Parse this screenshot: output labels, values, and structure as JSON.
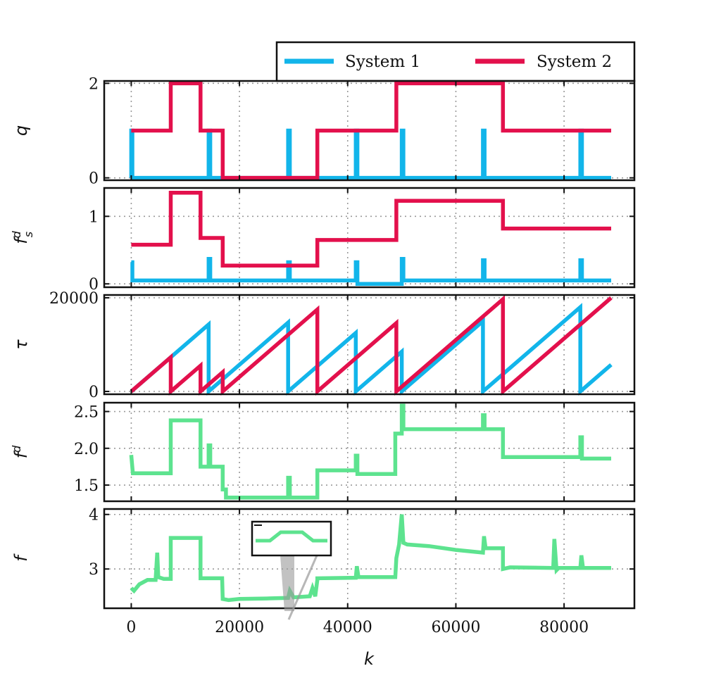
{
  "chart_data": {
    "type": "line",
    "xlabel": "k",
    "x_ticks": [
      0,
      20000,
      40000,
      60000,
      80000
    ],
    "xlim": [
      -5000,
      93000
    ],
    "grid": true,
    "legend": {
      "placement": "top-right",
      "entries": [
        {
          "label": "System 1",
          "color": "#12b5ea"
        },
        {
          "label": "System 2",
          "color": "#e3104c"
        }
      ]
    },
    "colors": {
      "system1": "#12b5ea",
      "system2": "#e3104c",
      "aggregate": "#5de38f",
      "frame": "#111111",
      "grid": "#9a9a9a"
    },
    "panels": [
      {
        "ylabel": "q",
        "ylim": [
          -0.05,
          2.05
        ],
        "y_ticks": [
          0,
          2
        ],
        "series": [
          {
            "name": "System 1",
            "color": "#12b5ea",
            "x": [
              0,
              0,
              200,
              200,
              14300,
              14300,
              14600,
              14600,
              29000,
              29000,
              29300,
              29300,
              41500,
              41500,
              41800,
              41800,
              50000,
              50000,
              50300,
              50300,
              65000,
              65000,
              65300,
              65300,
              83000,
              83000,
              83300,
              83300,
              88700
            ],
            "y": [
              0,
              1,
              1,
              0,
              0,
              1,
              1,
              0,
              0,
              1,
              1,
              0,
              0,
              1,
              1,
              0,
              0,
              1,
              1,
              0,
              0,
              1,
              1,
              0,
              0,
              1,
              1,
              0,
              0
            ]
          },
          {
            "name": "System 2",
            "color": "#e3104c",
            "x": [
              0,
              7300,
              7300,
              12800,
              12800,
              16900,
              16900,
              34400,
              34400,
              49000,
              49000,
              68700,
              68700,
              88700
            ],
            "y": [
              1,
              1,
              2,
              2,
              1,
              1,
              0,
              0,
              1,
              1,
              2,
              2,
              1,
              1
            ]
          }
        ]
      },
      {
        "ylabel": "f_s^d",
        "ylabel_main": "f",
        "ylabel_sub": "s",
        "ylabel_sup": "d",
        "ylim": [
          -0.05,
          1.42
        ],
        "y_ticks": [
          0,
          1
        ],
        "series": [
          {
            "name": "System 1",
            "color": "#12b5ea",
            "x": [
              0,
              0,
              200,
              200,
              14300,
              14300,
              14600,
              14600,
              29000,
              29000,
              29300,
              29300,
              41500,
              41500,
              41800,
              41800,
              50000,
              50000,
              50300,
              50300,
              65000,
              65000,
              65300,
              65300,
              83000,
              83000,
              83300,
              83300,
              88700
            ],
            "y": [
              0.32,
              0.32,
              0.32,
              0.05,
              0.05,
              0.37,
              0.37,
              0.05,
              0.05,
              0.32,
              0.32,
              0.05,
              0.05,
              0.32,
              0.32,
              0,
              0,
              0.37,
              0.37,
              0.05,
              0.05,
              0.35,
              0.35,
              0.05,
              0.05,
              0.35,
              0.35,
              0.05,
              0.05
            ]
          },
          {
            "name": "System 2",
            "color": "#e3104c",
            "x": [
              0,
              7300,
              7300,
              12800,
              12800,
              16900,
              16900,
              34400,
              34400,
              49000,
              49000,
              68700,
              68700,
              88700
            ],
            "y": [
              0.58,
              0.58,
              1.35,
              1.35,
              0.68,
              0.68,
              0.27,
              0.27,
              0.65,
              0.65,
              1.23,
              1.23,
              0.82,
              0.82
            ]
          }
        ]
      },
      {
        "ylabel": "τ",
        "ylim": [
          -600,
          20600
        ],
        "y_ticks": [
          0,
          20000
        ],
        "series": [
          {
            "name": "System 1",
            "color": "#12b5ea",
            "x": [
              0,
              7300,
              14300,
              14300,
              29000,
              29000,
              41500,
              41500,
              50000,
              50000,
              65000,
              65000,
              83000,
              83000,
              88700
            ],
            "y": [
              0,
              7300,
              14300,
              0,
              14700,
              0,
              12500,
              0,
              8500,
              0,
              15000,
              0,
              18000,
              0,
              5700
            ]
          },
          {
            "name": "System 2",
            "color": "#e3104c",
            "x": [
              0,
              7300,
              7300,
              12800,
              12800,
              16900,
              16900,
              34400,
              34400,
              49000,
              49000,
              68700,
              68700,
              88700
            ],
            "y": [
              0,
              7300,
              0,
              5500,
              0,
              4100,
              0,
              17500,
              0,
              14600,
              0,
              19700,
              0,
              20000
            ]
          }
        ]
      },
      {
        "ylabel": "f^d",
        "ylabel_main": "f",
        "ylabel_sup": "d",
        "ylim": [
          1.28,
          2.62
        ],
        "y_ticks": [
          1.5,
          2.0,
          2.5
        ],
        "tick_labels": [
          "1.5",
          "2.0",
          "2.5"
        ],
        "series": [
          {
            "name": "f^d",
            "color": "#5de38f",
            "x": [
              0,
              0,
              300,
              7300,
              7300,
              12800,
              12800,
              14300,
              14300,
              14600,
              14600,
              16900,
              16900,
              17500,
              17500,
              29000,
              29000,
              29300,
              29300,
              34400,
              34400,
              41500,
              41500,
              41800,
              41800,
              48800,
              48800,
              50000,
              50000,
              50300,
              50300,
              65000,
              65000,
              65300,
              65300,
              68700,
              68700,
              83000,
              83000,
              83300,
              83300,
              88700
            ],
            "y": [
              1.91,
              1.91,
              1.66,
              1.66,
              2.38,
              2.38,
              1.75,
              1.75,
              2.04,
              2.04,
              1.75,
              1.75,
              1.44,
              1.44,
              1.33,
              1.33,
              1.6,
              1.6,
              1.33,
              1.33,
              1.7,
              1.7,
              1.9,
              1.9,
              1.65,
              1.65,
              2.2,
              2.2,
              2.58,
              2.58,
              2.26,
              2.26,
              2.45,
              2.45,
              2.26,
              2.26,
              1.88,
              1.88,
              2.15,
              2.15,
              1.86,
              1.86
            ]
          }
        ]
      },
      {
        "ylabel": "f",
        "ylim": [
          2.28,
          4.1
        ],
        "y_ticks": [
          3,
          4
        ],
        "series": [
          {
            "name": "f",
            "color": "#5de38f",
            "x": [
              0,
              500,
              1500,
              3000,
              4500,
              4800,
              5000,
              6000,
              7300,
              7300,
              12800,
              12800,
              16800,
              16900,
              18000,
              20000,
              25000,
              29000,
              29300,
              30000,
              33000,
              33500,
              34000,
              34400,
              34400,
              41500,
              41700,
              42000,
              48800,
              49000,
              49500,
              50000,
              50300,
              51000,
              55000,
              60000,
              65000,
              65200,
              65500,
              68700,
              68700,
              70000,
              78000,
              78200,
              78600,
              79000,
              83000,
              83200,
              83500,
              88700
            ],
            "y": [
              2.65,
              2.6,
              2.72,
              2.8,
              2.8,
              3.3,
              2.85,
              2.82,
              2.82,
              3.57,
              3.57,
              2.83,
              2.83,
              2.45,
              2.43,
              2.45,
              2.46,
              2.47,
              2.6,
              2.48,
              2.5,
              2.65,
              2.5,
              2.8,
              2.83,
              2.84,
              3.05,
              2.85,
              2.85,
              3.2,
              3.45,
              4.0,
              3.48,
              3.45,
              3.42,
              3.35,
              3.3,
              3.6,
              3.38,
              3.38,
              3.0,
              3.03,
              3.02,
              3.55,
              2.98,
              3.02,
              3.02,
              3.25,
              3.02,
              3.02
            ]
          }
        ],
        "inset": {
          "x": [
            0,
            400,
            700,
            1000,
            1300,
            1600,
            2000
          ],
          "y": [
            0,
            0,
            0.6,
            0.6,
            0.6,
            0,
            0
          ]
        }
      }
    ]
  }
}
